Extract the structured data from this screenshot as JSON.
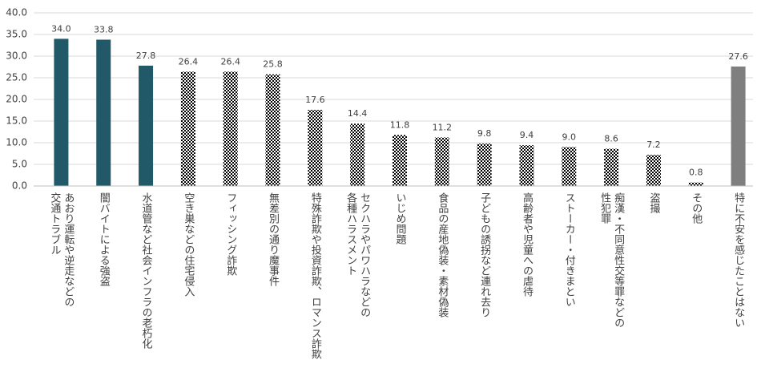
{
  "chart_data": {
    "type": "bar",
    "categories": [
      "あおり運転や逆走などの\n交通トラブル",
      "闇バイトによる強盗",
      "水道管など社会インフラの老朽化",
      "空き巣などの住宅侵入",
      "フィッシング詐欺",
      "無差別の通り魔事件",
      "特殊詐欺や投資詐欺、ロマンス詐欺",
      "セクハラやパワハラなどの\n各種ハラスメント",
      "いじめ問題",
      "食品の産地偽装・素材偽装",
      "子どもの誘拐など連れ去り",
      "高齢者や児童への虐待",
      "ストーカー・付きまとい",
      "痴漢・不同意性交等罪などの\n性犯罪",
      "盗撮",
      "その他",
      "特に不安を感じたことはない"
    ],
    "values": [
      34.0,
      33.8,
      27.8,
      26.4,
      26.4,
      25.8,
      17.6,
      14.4,
      11.8,
      11.2,
      9.8,
      9.4,
      9.0,
      8.6,
      7.2,
      0.8,
      27.6
    ],
    "value_labels": [
      "34.0",
      "33.8",
      "27.8",
      "26.4",
      "26.4",
      "25.8",
      "17.6",
      "14.4",
      "11.8",
      "11.2",
      "9.8",
      "9.4",
      "9.0",
      "8.6",
      "7.2",
      "0.8",
      "27.6"
    ],
    "colors": [
      "#215968",
      "#215968",
      "#215968",
      "#8fb2ba",
      "#8fb2ba",
      "#8fb2ba",
      "#8fb2ba",
      "#8fb2ba",
      "#8fb2ba",
      "#8fb2ba",
      "#8fb2ba",
      "#8fb2ba",
      "#8fb2ba",
      "#8fb2ba",
      "#8fb2ba",
      "#8fb2ba",
      "#7f7f7f"
    ],
    "bar_styles": [
      "solid",
      "solid",
      "solid",
      "checker",
      "checker",
      "checker",
      "checker",
      "checker",
      "checker",
      "checker",
      "checker",
      "checker",
      "checker",
      "checker",
      "checker",
      "checker",
      "solid"
    ],
    "ylim": [
      0,
      40
    ],
    "yticks": [
      {
        "value": 0,
        "label": "0.0"
      },
      {
        "value": 5,
        "label": "5.0"
      },
      {
        "value": 10,
        "label": "10.0"
      },
      {
        "value": 15,
        "label": "15.0"
      },
      {
        "value": 20,
        "label": "20.0"
      },
      {
        "value": 25,
        "label": "25.0"
      },
      {
        "value": 30,
        "label": "30.0"
      },
      {
        "value": 35,
        "label": "35.0"
      },
      {
        "value": 40,
        "label": "40.0"
      }
    ],
    "grid": true
  }
}
